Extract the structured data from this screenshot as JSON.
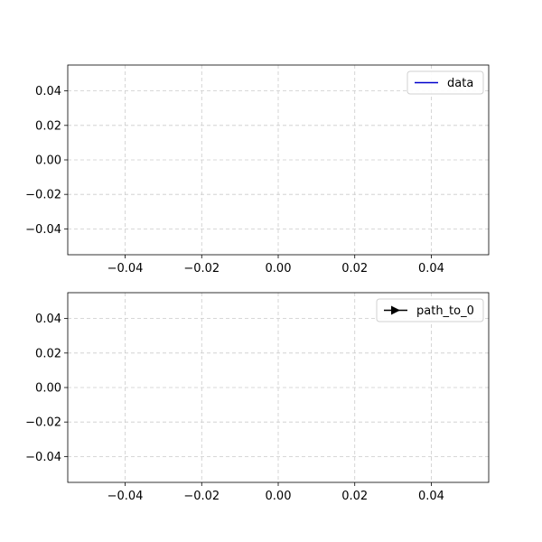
{
  "chart_data": [
    {
      "type": "line",
      "xlim": [
        -0.055,
        0.055
      ],
      "ylim": [
        -0.055,
        0.055
      ],
      "xticks": [
        -0.04,
        -0.02,
        0.0,
        0.02,
        0.04
      ],
      "yticks": [
        -0.04,
        -0.02,
        0.0,
        0.02,
        0.04
      ],
      "xtick_labels": [
        "−0.04",
        "−0.02",
        "0.00",
        "0.02",
        "0.04"
      ],
      "ytick_labels": [
        "−0.04",
        "−0.02",
        "0.00",
        "0.02",
        "0.04"
      ],
      "grid": true,
      "legend_position": "top-right",
      "series": [
        {
          "name": "data",
          "color": "#0000cc",
          "marker": "none",
          "x": [],
          "y": []
        }
      ]
    },
    {
      "type": "line",
      "xlim": [
        -0.055,
        0.055
      ],
      "ylim": [
        -0.055,
        0.055
      ],
      "xticks": [
        -0.04,
        -0.02,
        0.0,
        0.02,
        0.04
      ],
      "yticks": [
        -0.04,
        -0.02,
        0.0,
        0.02,
        0.04
      ],
      "xtick_labels": [
        "−0.04",
        "−0.02",
        "0.00",
        "0.02",
        "0.04"
      ],
      "ytick_labels": [
        "−0.04",
        "−0.02",
        "0.00",
        "0.02",
        "0.04"
      ],
      "grid": true,
      "legend_position": "top-right",
      "series": [
        {
          "name": "path_to_0",
          "color": "#000000",
          "marker": "arrow",
          "x": [],
          "y": []
        }
      ]
    }
  ]
}
